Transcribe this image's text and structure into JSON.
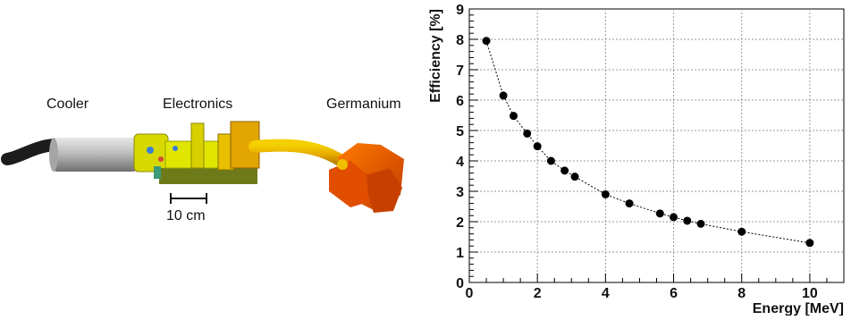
{
  "illustration": {
    "labels": {
      "cooler": "Cooler",
      "electronics": "Electronics",
      "germanium": "Germanium"
    },
    "scale_bar_label": "10 cm"
  },
  "chart_data": {
    "type": "scatter",
    "xlabel": "Energy [MeV]",
    "ylabel": "Efficiency [%]",
    "xlim": [
      0,
      11
    ],
    "ylim": [
      0,
      9
    ],
    "x_ticks": [
      0,
      2,
      4,
      6,
      8,
      10
    ],
    "y_ticks": [
      0,
      1,
      2,
      3,
      4,
      5,
      6,
      7,
      8,
      9
    ],
    "grid": true,
    "series": [
      {
        "connector": "dotted",
        "x": [
          0.5,
          1.0,
          1.3,
          1.7,
          2.0,
          2.4,
          2.8,
          3.1,
          4.0,
          4.7,
          5.6,
          6.0,
          6.4,
          6.8,
          8.0,
          10.0
        ],
        "y": [
          7.95,
          6.15,
          5.48,
          4.9,
          4.48,
          4.0,
          3.68,
          3.48,
          2.9,
          2.6,
          2.27,
          2.15,
          2.03,
          1.93,
          1.67,
          1.3
        ]
      }
    ],
    "colors": {
      "marker": "#000000",
      "grid": "#999999"
    }
  }
}
